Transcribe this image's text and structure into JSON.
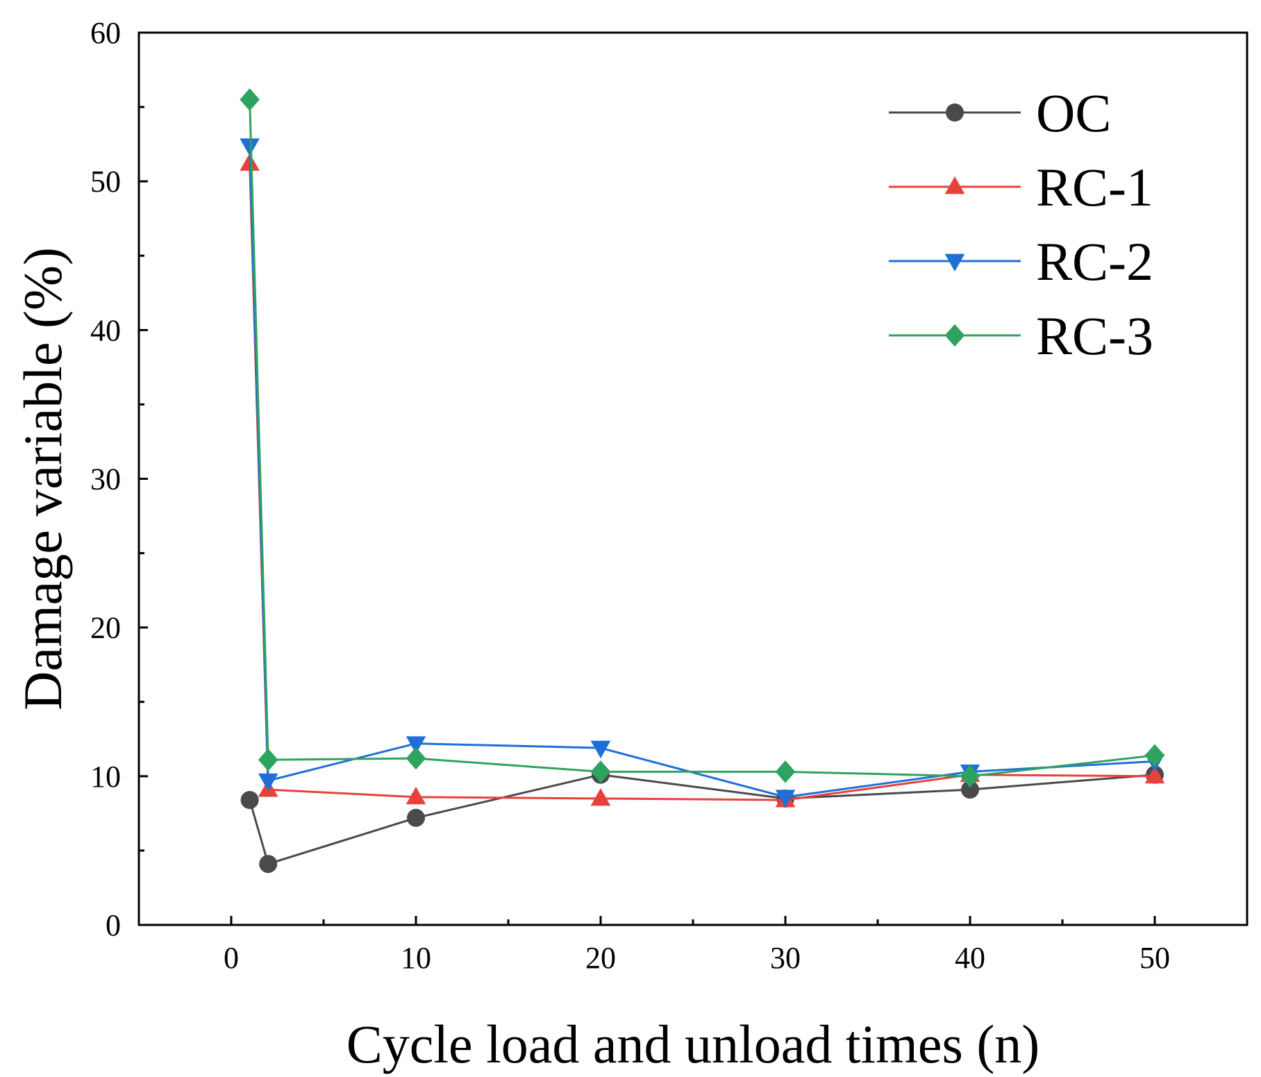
{
  "chart_data": {
    "type": "line",
    "xlabel": "Cycle load and unload times (n)",
    "ylabel": "Damage variable (%)",
    "xlim": [
      -5,
      55
    ],
    "ylim": [
      0,
      60
    ],
    "x_ticks": [
      0,
      10,
      20,
      30,
      40,
      50
    ],
    "y_ticks": [
      0,
      10,
      20,
      30,
      40,
      50,
      60
    ],
    "x_tick_labels": [
      "0",
      "10",
      "20",
      "30",
      "40",
      "50"
    ],
    "y_tick_labels": [
      "0",
      "10",
      "20",
      "30",
      "40",
      "50",
      "60"
    ],
    "grid": false,
    "legend_position": "top-right",
    "x": [
      1,
      2,
      10,
      20,
      30,
      40,
      50
    ],
    "series": [
      {
        "name": "OC",
        "color": "#4a4a4a",
        "marker": "circle",
        "values": [
          8.4,
          4.1,
          7.2,
          10.1,
          8.5,
          9.1,
          10.1
        ]
      },
      {
        "name": "RC-1",
        "color": "#e8413c",
        "marker": "triangle-up",
        "values": [
          51.2,
          9.1,
          8.6,
          8.5,
          8.4,
          10.1,
          10.0
        ]
      },
      {
        "name": "RC-2",
        "color": "#1f6fd6",
        "marker": "triangle-down",
        "values": [
          52.4,
          9.7,
          12.2,
          11.9,
          8.6,
          10.3,
          11.0
        ]
      },
      {
        "name": "RC-3",
        "color": "#2ea35f",
        "marker": "diamond",
        "values": [
          55.5,
          11.1,
          11.2,
          10.3,
          10.3,
          10.0,
          11.4
        ]
      }
    ]
  }
}
